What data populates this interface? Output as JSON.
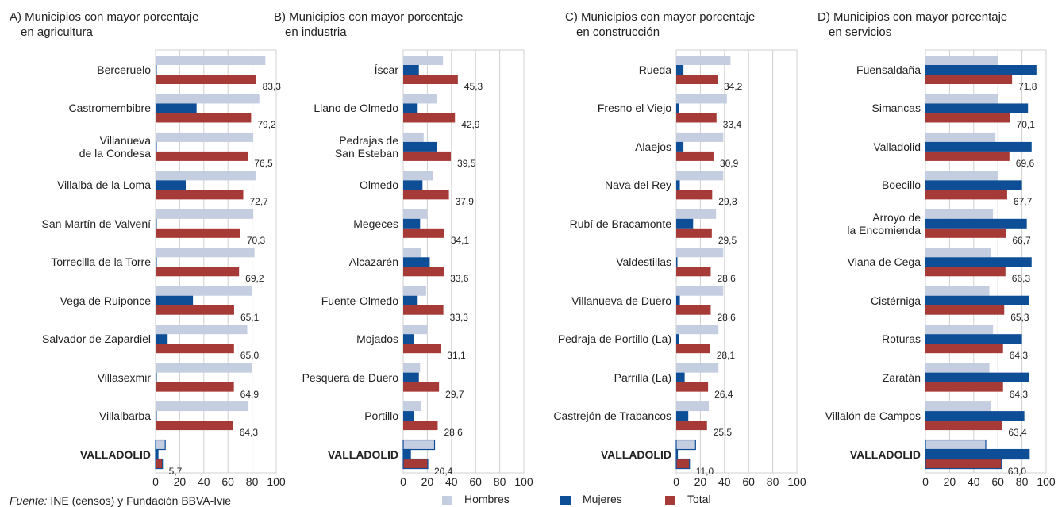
{
  "legend": [
    {
      "name": "Hombres",
      "color": "#c5cde0"
    },
    {
      "name": "Mujeres",
      "color": "#0d4e97"
    },
    {
      "name": "Total",
      "color": "#a53a36"
    }
  ],
  "source_label": "Fuente:",
  "source": "INE (censos) y Fundación BBVA-Ivie",
  "chart_data": [
    {
      "type": "hbar",
      "title": "A) Municipios con mayor porcentaje\nen agricultura",
      "categories": [
        "Berceruelo",
        "Castromembibre",
        "Villanueva\nde la Condesa",
        "Villalba de la Loma",
        "San Martín de Valvení",
        "Torrecilla de la Torre",
        "Vega de Ruiponce",
        "Salvador de Zapardiel",
        "Villasexmir",
        "Villalbarba",
        "VALLADOLID"
      ],
      "series": [
        {
          "values": [
            91,
            86,
            81,
            83,
            81,
            82,
            80,
            76,
            80,
            77,
            8
          ]
        },
        {
          "values": [
            1,
            34,
            1,
            25,
            1,
            1,
            31,
            10,
            1,
            1,
            2
          ]
        },
        {
          "values": [
            83.3,
            79.2,
            76.5,
            72.7,
            70.3,
            69.2,
            65.1,
            65.0,
            64.9,
            64.3,
            5.7
          ],
          "value_labels": [
            "83,3",
            "79,2",
            "76,5",
            "72,7",
            "70,3",
            "69,2",
            "65,1",
            "65,0",
            "64,9",
            "64,3",
            "5,7"
          ]
        }
      ],
      "xlim": [
        0,
        100
      ],
      "xticks": [
        0,
        20,
        40,
        60,
        80,
        100
      ],
      "grid": true
    },
    {
      "type": "hbar",
      "title": "B) Municipios con mayor porcentaje\nen industria",
      "categories": [
        "Íscar",
        "Llano de Olmedo",
        "Pedrajas de\nSan Esteban",
        "Olmedo",
        "Megeces",
        "Alcazarén",
        "Fuente-Olmedo",
        "Mojados",
        "Pesquera de Duero",
        "Portillo",
        "VALLADOLID"
      ],
      "series": [
        {
          "values": [
            33,
            28,
            17,
            25,
            20,
            15,
            19,
            20,
            14,
            15,
            26
          ]
        },
        {
          "values": [
            13,
            12,
            28,
            16,
            14,
            22,
            12,
            9,
            13,
            9,
            6
          ]
        },
        {
          "values": [
            45.3,
            42.9,
            39.5,
            37.9,
            34.1,
            33.6,
            33.3,
            31.1,
            29.7,
            28.6,
            20.4
          ],
          "value_labels": [
            "45,3",
            "42,9",
            "39,5",
            "37,9",
            "34,1",
            "33,6",
            "33,3",
            "31,1",
            "29,7",
            "28,6",
            "20,4"
          ]
        }
      ],
      "xlim": [
        0,
        100
      ],
      "xticks": [
        0,
        20,
        40,
        60,
        80,
        100
      ],
      "grid": true
    },
    {
      "type": "hbar",
      "title": "C) Municipios con mayor porcentaje\nen construcción",
      "categories": [
        "Rueda",
        "Fresno el Viejo",
        "Alaejos",
        "Nava del Rey",
        "Rubí de Bracamonte",
        "Valdestillas",
        "Villanueva de Duero",
        "Pedraja de Portillo (La)",
        "Parrilla (La)",
        "Castrejón de Trabancos",
        "VALLADOLID"
      ],
      "series": [
        {
          "values": [
            45,
            42,
            39,
            39,
            33,
            39,
            39,
            35,
            35,
            27,
            16
          ]
        },
        {
          "values": [
            6,
            2,
            6,
            3,
            14,
            1,
            3,
            2,
            7,
            10,
            1
          ]
        },
        {
          "values": [
            34.2,
            33.4,
            30.9,
            29.8,
            29.5,
            28.6,
            28.6,
            28.1,
            26.4,
            25.5,
            11.0
          ],
          "value_labels": [
            "34,2",
            "33,4",
            "30,9",
            "29,8",
            "29,5",
            "28,6",
            "28,6",
            "28,1",
            "26,4",
            "25,5",
            "11,0"
          ]
        }
      ],
      "xlim": [
        0,
        100
      ],
      "xticks": [
        0,
        20,
        40,
        60,
        80,
        100
      ],
      "grid": true
    },
    {
      "type": "hbar",
      "title": "D) Municipios con mayor porcentaje\nen servicios",
      "categories": [
        "Fuensaldaña",
        "Simancas",
        "Valladolid",
        "Boecillo",
        "Arroyo de\nla Encomienda",
        "Viana de Cega",
        "Cistérniga",
        "Roturas",
        "Zaratán",
        "Villalón de Campos",
        "VALLADOLID"
      ],
      "series": [
        {
          "values": [
            60,
            60,
            58,
            60,
            56,
            54,
            53,
            56,
            53,
            54,
            50
          ]
        },
        {
          "values": [
            92,
            85,
            88,
            80,
            84,
            88,
            86,
            80,
            86,
            82,
            86
          ]
        },
        {
          "values": [
            71.8,
            70.1,
            69.6,
            67.7,
            66.7,
            66.3,
            65.3,
            64.3,
            64.3,
            63.4,
            63.0
          ],
          "value_labels": [
            "71,8",
            "70,1",
            "69,6",
            "67,7",
            "66,7",
            "66,3",
            "65,3",
            "64,3",
            "64,3",
            "63,4",
            "63,0"
          ]
        }
      ],
      "xlim": [
        0,
        100
      ],
      "xticks": [
        0,
        20,
        40,
        60,
        80,
        100
      ],
      "grid": true
    }
  ]
}
